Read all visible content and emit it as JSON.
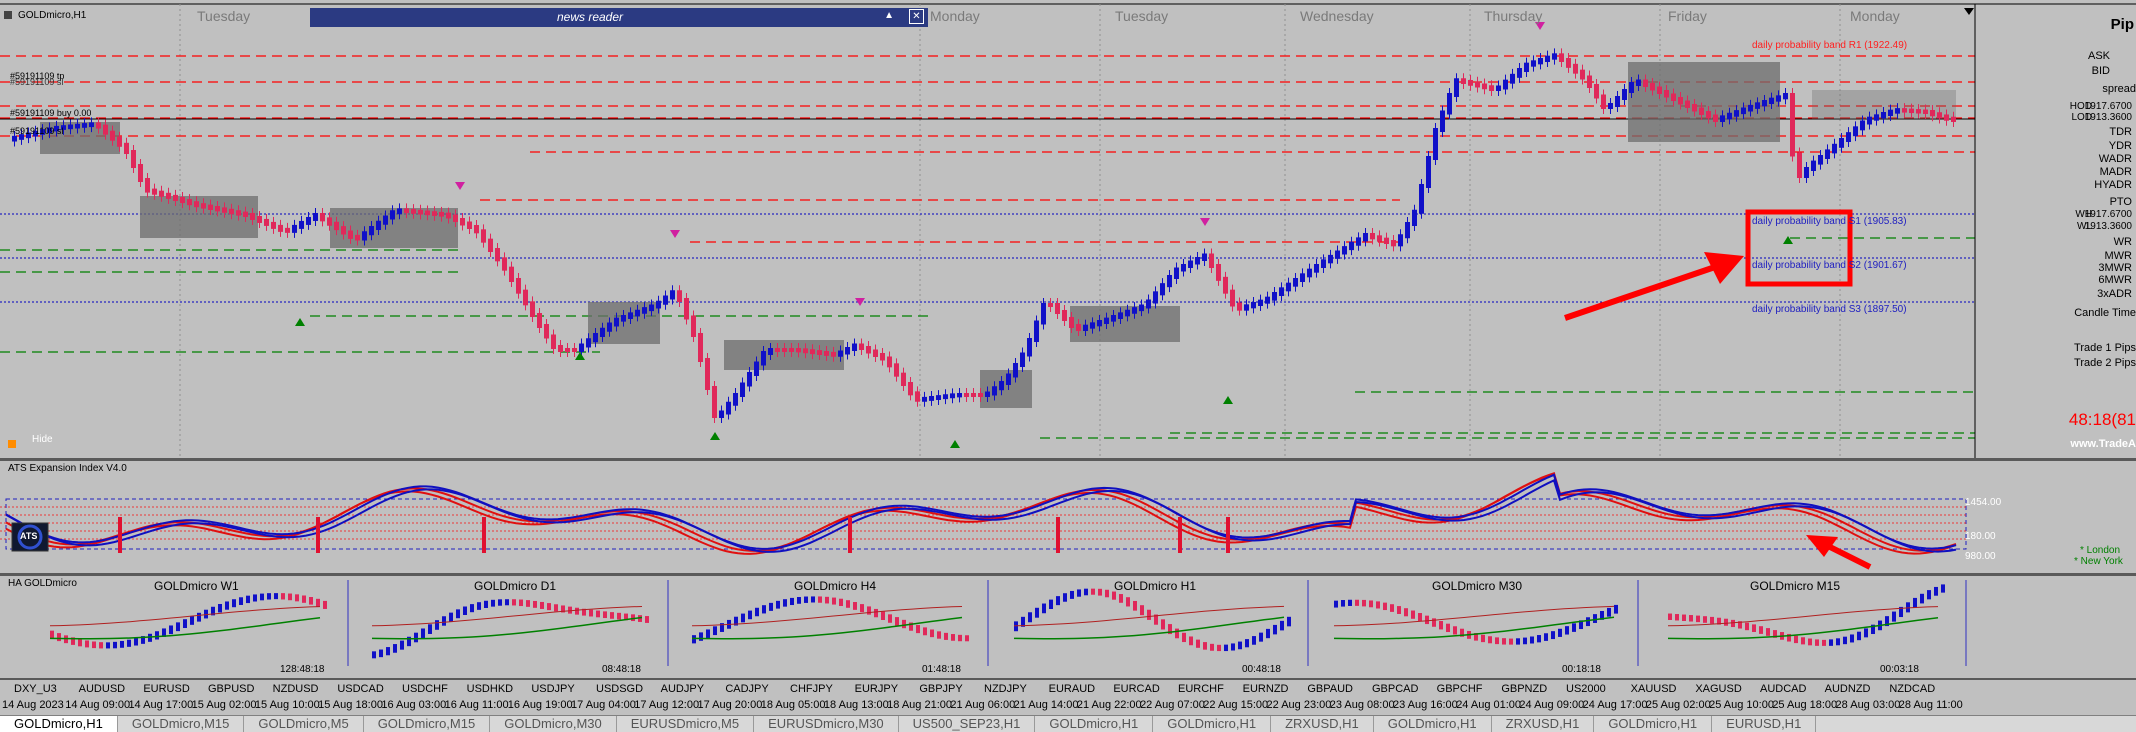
{
  "window": {
    "title": "GOLDmicro,H1"
  },
  "days": [
    {
      "label": "Tuesday"
    },
    {
      "label": "Monday"
    },
    {
      "label": "Tuesday"
    },
    {
      "label": "Wednesday"
    },
    {
      "label": "Thursday"
    },
    {
      "label": "Friday"
    },
    {
      "label": "Monday"
    }
  ],
  "news_reader": {
    "title": "news reader",
    "min": "▲",
    "close": "✕"
  },
  "orders": {
    "o1": "#59191109 tp",
    "o1b": "#59191109 sl",
    "o2": "#59191109 buy 0.00",
    "o3": "#59191109 sl"
  },
  "bands": {
    "r1": "daily probability band R1 (1922.49)",
    "s1": "daily probability band S1 (1905.83)",
    "s2": "daily probability band S2 (1901.67)",
    "s3": "daily probability band S3 (1897.50)"
  },
  "right_panel": {
    "title": "Pip",
    "ask": "ASK",
    "bid": "BID",
    "spread": "spread",
    "hod": "HOD",
    "hod_val": "1917.6700",
    "lod": "LOD",
    "lod_val": "1913.3600",
    "tdr": "TDR",
    "ydr": "YDR",
    "wadr": "WADR",
    "madr": "MADR",
    "hyadr": "HYADR",
    "pto": "PTO",
    "wh": "WH",
    "wh_val": "1917.6700",
    "wl": "WL",
    "wl_val": "1913.3600",
    "wr": "WR",
    "mwr": "MWR",
    "mwr3": "3MWR",
    "mwr6": "6MWR",
    "adr3": "3xADR",
    "candle_time": "Candle Time",
    "trade1": "Trade 1 Pips",
    "trade2": "Trade 2 Pips",
    "timer": "48:18(81",
    "url": "www.TradeA"
  },
  "hide_label": "Hide",
  "indicator": {
    "title": "ATS Expansion Index V4.0",
    "levels": [
      "1454.00",
      "180.00",
      "980.00"
    ],
    "sessions": [
      "* London",
      "* New York"
    ],
    "logo": "ATS"
  },
  "mtf": {
    "title": "HA GOLDmicro",
    "panels": [
      {
        "label": "GOLDmicro W1",
        "timer": "128:48:18"
      },
      {
        "label": "GOLDmicro D1",
        "timer": "08:48:18"
      },
      {
        "label": "GOLDmicro H4",
        "timer": "01:48:18"
      },
      {
        "label": "GOLDmicro H1",
        "timer": "00:48:18"
      },
      {
        "label": "GOLDmicro M30",
        "timer": "00:18:18"
      },
      {
        "label": "GOLDmicro M15",
        "timer": "00:03:18"
      }
    ]
  },
  "symbols": [
    "DXY_U3",
    "AUDUSD",
    "EURUSD",
    "GBPUSD",
    "NZDUSD",
    "USDCAD",
    "USDCHF",
    "USDHKD",
    "USDJPY",
    "USDSGD",
    "AUDJPY",
    "CADJPY",
    "CHFJPY",
    "EURJPY",
    "GBPJPY",
    "NZDJPY",
    "EURAUD",
    "EURCAD",
    "EURCHF",
    "EURNZD",
    "GBPAUD",
    "GBPCAD",
    "GBPCHF",
    "GBPNZD",
    "US2000",
    "XAUUSD",
    "XAGUSD",
    "AUDCAD",
    "AUDNZD",
    "NZDCAD"
  ],
  "dates": [
    "14 Aug 2023",
    "14 Aug 09:00",
    "14 Aug 17:00",
    "15 Aug 02:00",
    "15 Aug 10:00",
    "15 Aug 18:00",
    "16 Aug 03:00",
    "16 Aug 11:00",
    "16 Aug 19:00",
    "17 Aug 04:00",
    "17 Aug 12:00",
    "17 Aug 20:00",
    "18 Aug 05:00",
    "18 Aug 13:00",
    "18 Aug 21:00",
    "21 Aug 06:00",
    "21 Aug 14:00",
    "21 Aug 22:00",
    "22 Aug 07:00",
    "22 Aug 15:00",
    "22 Aug 23:00",
    "23 Aug 08:00",
    "23 Aug 16:00",
    "24 Aug 01:00",
    "24 Aug 09:00",
    "24 Aug 17:00",
    "25 Aug 02:00",
    "25 Aug 10:00",
    "25 Aug 18:00",
    "28 Aug 03:00",
    "28 Aug 11:00"
  ],
  "tabs": [
    "GOLDmicro,H1",
    "GOLDmicro,M15",
    "GOLDmicro,M5",
    "GOLDmicro,M15",
    "GOLDmicro,M30",
    "EURUSDmicro,M5",
    "EURUSDmicro,M30",
    "US500_SEP23,H1",
    "GOLDmicro,H1",
    "GOLDmicro,H1",
    "ZRXUSD,H1",
    "GOLDmicro,H1",
    "ZRXUSD,H1",
    "GOLDmicro,H1",
    "EURUSD,H1"
  ],
  "colors": {
    "bull": "#1010c8",
    "bear": "#e0285a",
    "accent_red": "#ff0000",
    "green": "#008000",
    "navy": "#2b3a82"
  }
}
